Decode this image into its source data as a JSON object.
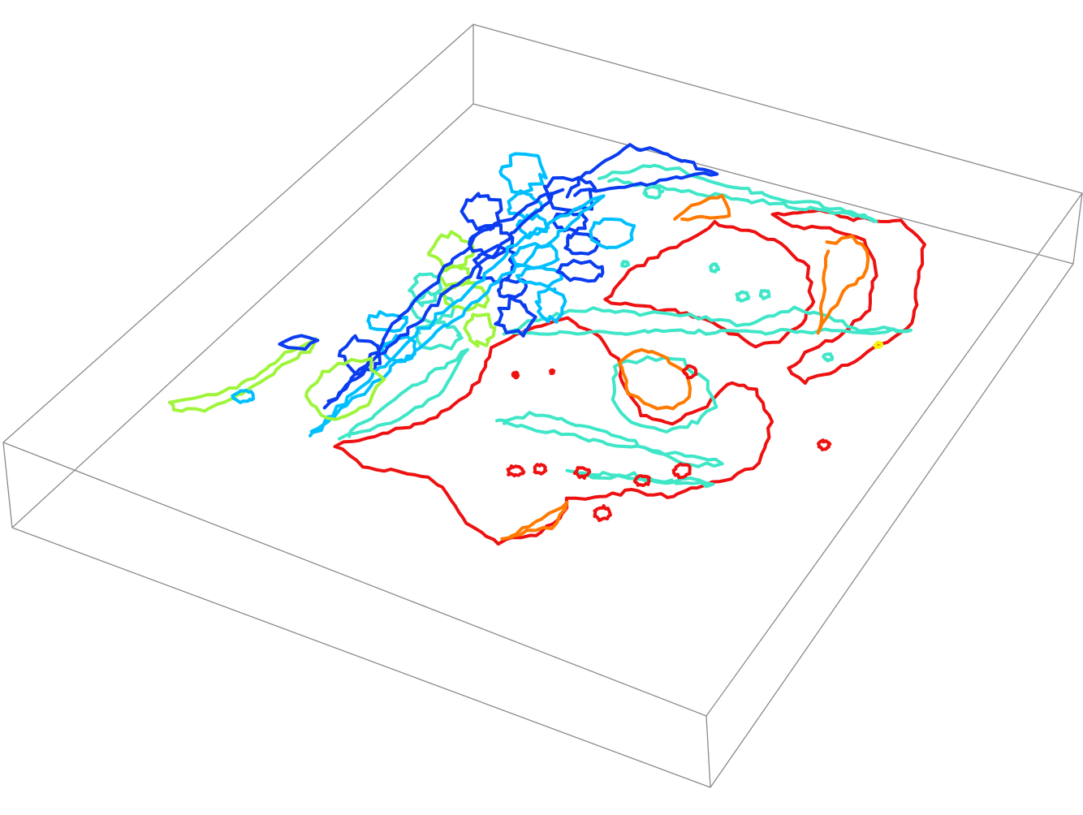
{
  "figure": {
    "type": "3d-contour-plot",
    "bounding_box": "shown",
    "axes_labels": "none",
    "colormap": "jet",
    "level_colors": [
      {
        "level": "low",
        "color": "#0a3cf0"
      },
      {
        "level": "low-mid",
        "color": "#00bfff"
      },
      {
        "level": "mid",
        "color": "#3fe6c8"
      },
      {
        "level": "mid-high",
        "color": "#9ef53a"
      },
      {
        "level": "high-mid",
        "color": "#ff7a00"
      },
      {
        "level": "high",
        "color": "#ee1111"
      }
    ]
  }
}
